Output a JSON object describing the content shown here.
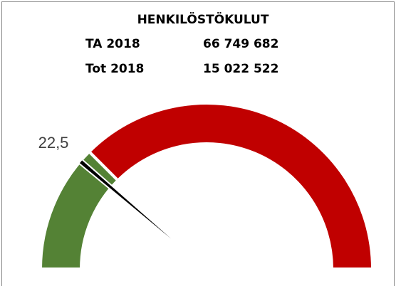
{
  "chart_data": {
    "type": "gauge",
    "title": "HENKILÖSTÖKULUT",
    "rows": [
      {
        "label": "TA 2018",
        "value": "66 749 682"
      },
      {
        "label": "Tot 2018",
        "value": "15 022 522"
      }
    ],
    "value": 22.5,
    "value_label": "22,5",
    "range": [
      0,
      100
    ],
    "bands": [
      {
        "from": 0,
        "to": 25,
        "color": "#548235"
      },
      {
        "from": 25,
        "to": 100,
        "color": "#c00000"
      }
    ],
    "needle_color": "#000000"
  }
}
